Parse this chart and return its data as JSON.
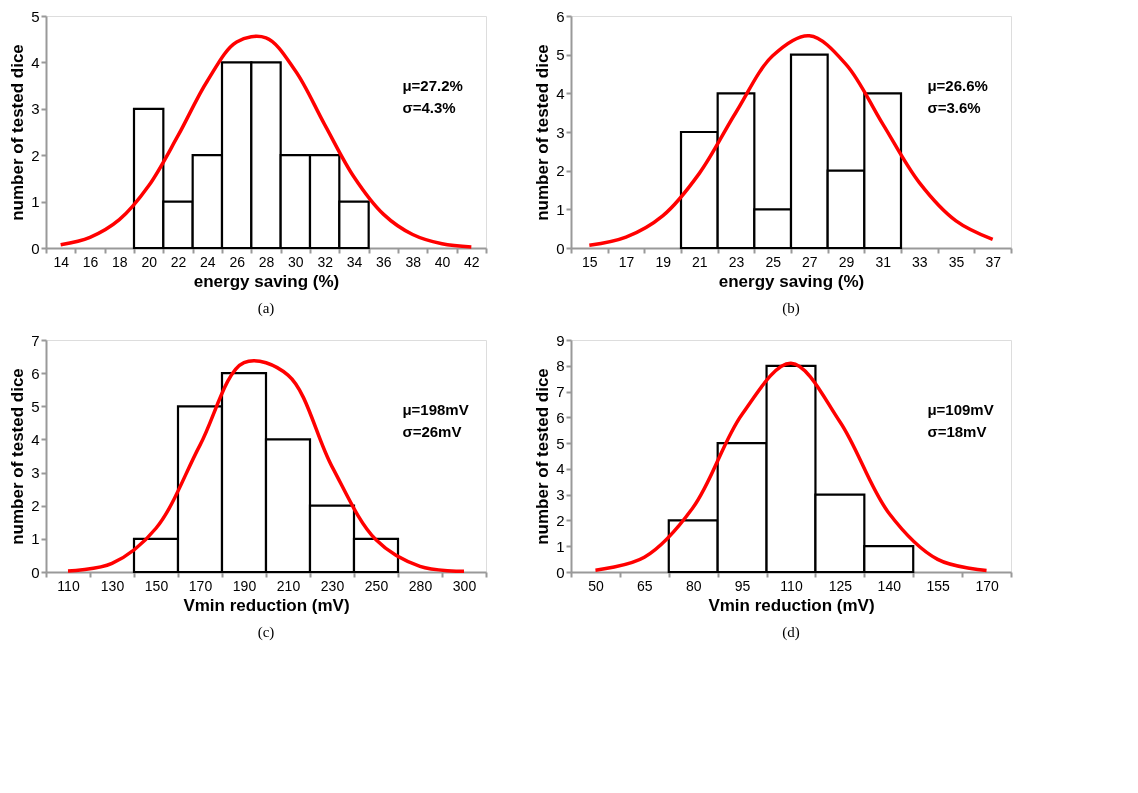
{
  "chart_data": [
    {
      "type": "bar",
      "title": "(a)",
      "xlabel": "energy saving (%)",
      "ylabel": "number of tested dice",
      "categories": [
        "14",
        "16",
        "18",
        "20",
        "22",
        "24",
        "26",
        "28",
        "30",
        "32",
        "34",
        "36",
        "38",
        "40",
        "42"
      ],
      "series": [
        {
          "type": "bar",
          "color": "#ffffff",
          "values": [
            null,
            null,
            null,
            3,
            1,
            2,
            4,
            4,
            2,
            2,
            1,
            null,
            null,
            null,
            null
          ]
        },
        {
          "type": "line",
          "color": "#ff0000",
          "values": [
            0.07,
            0.23,
            0.61,
            1.34,
            2.42,
            3.6,
            4.44,
            4.53,
            3.82,
            2.66,
            1.53,
            0.73,
            0.29,
            0.09,
            0.02
          ]
        }
      ],
      "ylim": [
        0,
        5
      ],
      "yticks": [
        0,
        1,
        2,
        3,
        4,
        5
      ],
      "annotations": [
        "μ=27.2%",
        "σ=4.3%"
      ]
    },
    {
      "type": "bar",
      "title": "(b)",
      "xlabel": "energy saving (%)",
      "ylabel": "number of tested dice",
      "categories": [
        "15",
        "17",
        "19",
        "21",
        "23",
        "25",
        "27",
        "29",
        "31",
        "33",
        "35",
        "37"
      ],
      "series": [
        {
          "type": "bar",
          "color": "#ffffff",
          "values": [
            null,
            null,
            null,
            3,
            4,
            1,
            5,
            2,
            4,
            null,
            null,
            null
          ]
        },
        {
          "type": "line",
          "color": "#ff0000",
          "values": [
            0.07,
            0.28,
            0.83,
            1.93,
            3.51,
            4.97,
            5.49,
            4.75,
            3.21,
            1.69,
            0.7,
            0.22
          ]
        }
      ],
      "ylim": [
        0,
        6
      ],
      "yticks": [
        0,
        1,
        2,
        3,
        4,
        5,
        6
      ],
      "annotations": [
        "μ=26.6%",
        "σ=3.6%"
      ]
    },
    {
      "type": "bar",
      "title": "(c)",
      "xlabel": "Vmin reduction (mV)",
      "ylabel": "number of tested dice",
      "categories": [
        "110",
        "130",
        "150",
        "170",
        "190",
        "210",
        "230",
        "250",
        "280",
        "300"
      ],
      "series": [
        {
          "type": "bar",
          "color": "#ffffff",
          "values": [
            null,
            null,
            1,
            5,
            6,
            4,
            2,
            1,
            null,
            null
          ]
        },
        {
          "type": "line",
          "color": "#ff0000",
          "values": [
            0.03,
            0.26,
            1.32,
            3.83,
            6.32,
            5.94,
            3.18,
            0.97,
            0.17,
            0.02
          ]
        }
      ],
      "ylim": [
        0,
        7
      ],
      "yticks": [
        0,
        1,
        2,
        3,
        4,
        5,
        6,
        7
      ],
      "annotations": [
        "μ=198mV",
        "σ=26mV"
      ]
    },
    {
      "type": "bar",
      "title": "(d)",
      "xlabel": "Vmin reduction (mV)",
      "ylabel": "number of tested dice",
      "categories": [
        "50",
        "65",
        "80",
        "95",
        "110",
        "125",
        "140",
        "155",
        "170"
      ],
      "series": [
        {
          "type": "bar",
          "color": "#ffffff",
          "values": [
            null,
            null,
            2,
            5,
            8,
            3,
            1,
            null,
            null
          ]
        },
        {
          "type": "line",
          "color": "#ff0000",
          "values": [
            0.07,
            0.57,
            2.51,
            6.12,
            8.1,
            5.83,
            2.29,
            0.49,
            0.06
          ]
        }
      ],
      "ylim": [
        0,
        9
      ],
      "yticks": [
        0,
        1,
        2,
        3,
        4,
        5,
        6,
        7,
        8,
        9
      ],
      "annotations": [
        "μ=109mV",
        "σ=18mV"
      ]
    }
  ]
}
